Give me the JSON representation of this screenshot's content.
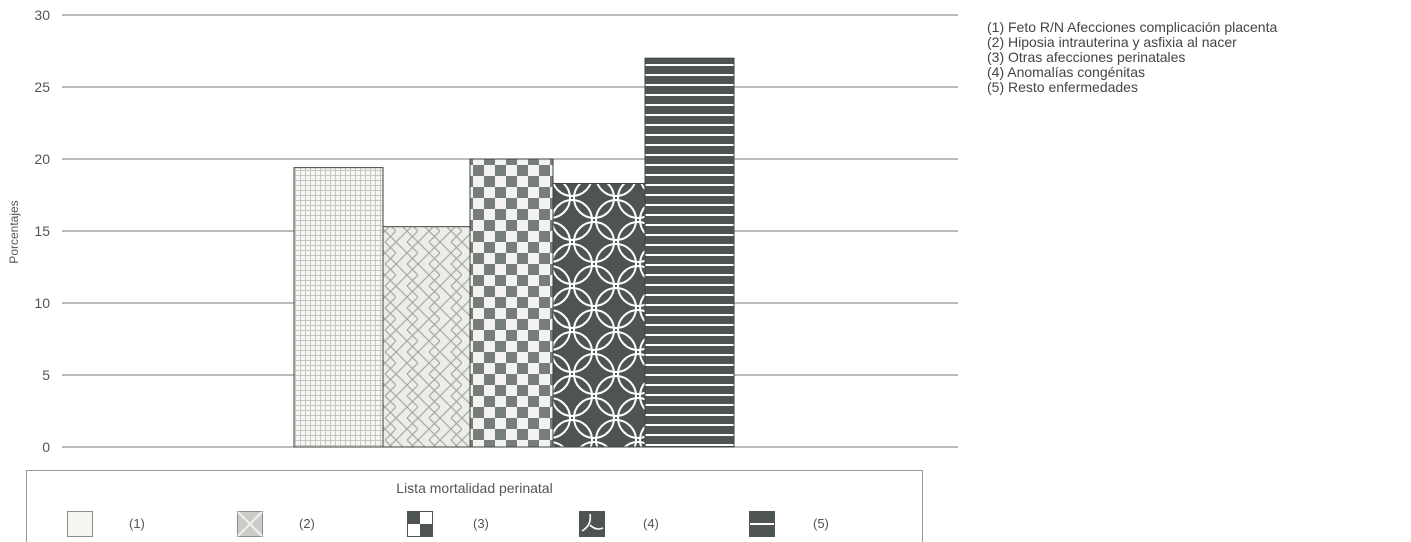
{
  "chart_data": {
    "type": "bar",
    "categories": [
      "(1)",
      "(2)",
      "(3)",
      "(4)",
      "(5)"
    ],
    "values": [
      19.4,
      15.3,
      20,
      18.3,
      27
    ],
    "ylabel": "Porcentajes",
    "ylim": [
      0,
      30
    ],
    "yticks": [
      0,
      5,
      10,
      15,
      20,
      25,
      30
    ],
    "grid": true,
    "legend_title": "Lista mortalidad perinatal",
    "legend_placement": "bottom",
    "patterns": [
      "fine-grid",
      "diagonal-crosshatch",
      "checkerboard",
      "circles",
      "horizontal-stripes"
    ],
    "category_notes": [
      "(1) Feto R/N Afecciones complicación placenta",
      "(2) Hiposia intrauterina y asfixia al nacer",
      "(3) Otras afecciones perinatales",
      "(4) Anomalías congénitas",
      "(5) Resto enfermedades"
    ]
  },
  "colors": {
    "dark_fill": "#4e5550",
    "light_line": "#b8bdb8",
    "grid": "#777777",
    "text": "#555555"
  }
}
